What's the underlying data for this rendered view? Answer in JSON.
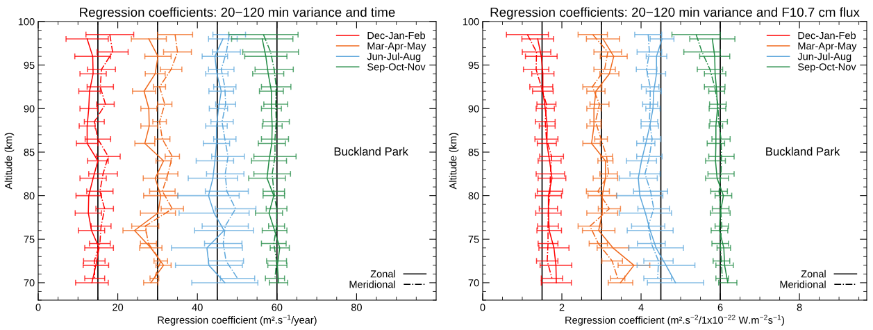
{
  "chart_data": [
    {
      "type": "line",
      "title": "Regression coefficients: 20−120 min variance and time",
      "xlabel": "Regression coefficient (m².s$^{−1}$/year)",
      "ylabel": "Altitude (km)",
      "xlim": [
        0,
        100
      ],
      "ylim": [
        68,
        100
      ],
      "xticks": [
        0,
        {
          "value": 5,
          "label": null
        },
        {
          "value": 10,
          "label": null
        },
        {
          "value": 15,
          "label": null
        },
        20,
        {
          "value": 25,
          "label": null
        },
        {
          "value": 30,
          "label": null
        },
        {
          "value": 35,
          "label": null
        },
        40,
        {
          "value": 45,
          "label": null
        },
        {
          "value": 50,
          "label": null
        },
        {
          "value": 55,
          "label": null
        },
        60,
        {
          "value": 65,
          "label": null
        },
        {
          "value": 70,
          "label": null
        },
        {
          "value": 75,
          "label": null
        },
        80,
        {
          "value": 85,
          "label": null
        },
        {
          "value": 90,
          "label": null
        },
        {
          "value": 95,
          "label": null
        }
      ],
      "yticks": [
        {
          "value": 68,
          "label": null
        },
        {
          "value": 69,
          "label": null
        },
        70,
        {
          "value": 71,
          "label": null
        },
        {
          "value": 72,
          "label": null
        },
        {
          "value": 73,
          "label": null
        },
        {
          "value": 74,
          "label": null
        },
        75,
        {
          "value": 76,
          "label": null
        },
        {
          "value": 77,
          "label": null
        },
        {
          "value": 78,
          "label": null
        },
        {
          "value": 79,
          "label": null
        },
        80,
        {
          "value": 81,
          "label": null
        },
        {
          "value": 82,
          "label": null
        },
        {
          "value": 83,
          "label": null
        },
        {
          "value": 84,
          "label": null
        },
        85,
        {
          "value": 86,
          "label": null
        },
        {
          "value": 87,
          "label": null
        },
        {
          "value": 88,
          "label": null
        },
        {
          "value": 89,
          "label": null
        },
        90,
        {
          "value": 91,
          "label": null
        },
        {
          "value": 92,
          "label": null
        },
        {
          "value": 93,
          "label": null
        },
        {
          "value": 94,
          "label": null
        },
        95,
        {
          "value": 96,
          "label": null
        },
        {
          "value": 97,
          "label": null
        },
        {
          "value": 98,
          "label": null
        },
        {
          "value": 99,
          "label": null
        },
        100
      ],
      "grid": false,
      "legend": "top right",
      "marker": "none",
      "ref_lines": [
        {
          "axis": "x",
          "value": 15,
          "color": "#000000"
        },
        {
          "axis": "x",
          "value": 30,
          "color": "#000000"
        },
        {
          "axis": "x",
          "value": 45,
          "color": "#000000"
        },
        {
          "axis": "x",
          "value": 60,
          "color": "#000000"
        }
      ],
      "annotations": [
        "Buckland Park",
        "Zonal",
        "Meridional"
      ],
      "series": [
        {
          "name": "Dec-Jan-Feb",
          "color": "#ff0000",
          "line_style": "solid",
          "x": [
            12.3,
            13.7,
            13.8,
            12.9,
            12.7,
            12.3,
            12.3,
            15.0,
            13.8,
            12.7,
            12.6,
            13.4,
            15.3,
            14.5,
            13.5
          ],
          "values": [
            98,
            96,
            94,
            92,
            90,
            88,
            86,
            84,
            82,
            80,
            78,
            76,
            74,
            72,
            70
          ],
          "xerrors": [
            5.3,
            4.5,
            3.3,
            2.7,
            2.2,
            2.0,
            2.7,
            2.6,
            3.3,
            3.2,
            3.3,
            3.3,
            3.6,
            3.2,
            4.1
          ]
        },
        {
          "color": "#ff0000",
          "line_style": "dashdot",
          "x": [
            18.0,
            18.7,
            15.9,
            15.6,
            16.9,
            14.1,
            15.0,
            17.6,
            16.3,
            15.5,
            16.7,
            15.8,
            15.5,
            14.1,
            14.2
          ],
          "values": [
            98.5,
            96.5,
            94.5,
            92.5,
            90.5,
            88.5,
            86.5,
            84.5,
            82.5,
            80.5,
            78.5,
            76.5,
            74.5,
            72.5,
            70.5
          ],
          "xerrors": [
            6.0,
            3.9,
            3.5,
            3.3,
            2.2,
            2.5,
            3.2,
            3.0,
            3.6,
            3.3,
            2.2,
            2.5,
            2.6,
            2.7,
            2.5
          ]
        },
        {
          "name": "Mar-Apr-May",
          "color": "#f06a1e",
          "line_style": "solid",
          "x": [
            27.8,
            30.1,
            29.4,
            26.6,
            27.8,
            27.9,
            26.8,
            31.5,
            29.4,
            30.8,
            30.1,
            24.2,
            28.3,
            31.5,
            28.3
          ],
          "values": [
            98,
            96,
            94,
            92,
            90,
            88,
            86,
            84,
            82,
            80,
            78,
            76,
            74,
            72,
            70
          ],
          "xerrors": [
            4.4,
            3.3,
            2.5,
            2.9,
            2.0,
            2.1,
            2.5,
            1.9,
            3.0,
            4.3,
            4.4,
            2.9,
            2.8,
            1.9,
            1.8
          ]
        },
        {
          "color": "#f06a1e",
          "line_style": "dashdot",
          "x": [
            34.4,
            35.0,
            33.4,
            30.5,
            31.8,
            30.5,
            31.2,
            33.7,
            32.6,
            31.2,
            33.7,
            26.9,
            27.7,
            30.8,
            29.2
          ],
          "values": [
            98.5,
            96.5,
            94.5,
            92.5,
            90.5,
            88.5,
            86.5,
            84.5,
            82.5,
            80.5,
            78.5,
            76.5,
            74.5,
            72.5,
            70.5
          ],
          "xerrors": [
            4.4,
            3.5,
            2.7,
            1.5,
            1.8,
            1.7,
            1.9,
            1.8,
            2.5,
            3.2,
            2.8,
            3.4,
            2.0,
            1.7,
            1.1
          ]
        },
        {
          "name": "Jun-Jul-Aug",
          "color": "#5fa8dc",
          "line_style": "solid",
          "x": [
            46.4,
            44.4,
            44.9,
            46.0,
            45.3,
            44.8,
            44.8,
            44.4,
            43.9,
            42.8,
            44.2,
            46.7,
            42.4,
            42.9,
            46.9
          ],
          "values": [
            98,
            96,
            94,
            92,
            90,
            88,
            86,
            84,
            82,
            80,
            78,
            76,
            74,
            72,
            70
          ],
          "xerrors": [
            3.6,
            3.2,
            2.8,
            3.1,
            2.3,
            2.7,
            3.3,
            4.7,
            6.2,
            7.7,
            8.8,
            7.4,
            8.9,
            8.4,
            8.3
          ]
        },
        {
          "color": "#5fa8dc",
          "line_style": "dashdot",
          "x": [
            48.0,
            47.3,
            46.0,
            46.9,
            47.1,
            46.2,
            46.9,
            47.7,
            47.0,
            47.4,
            49.6,
            47.0,
            46.5,
            47.2,
            50.1
          ],
          "values": [
            98.5,
            96.5,
            94.5,
            92.5,
            90.5,
            88.5,
            86.5,
            84.5,
            82.5,
            80.5,
            78.5,
            76.5,
            74.5,
            72.5,
            70.5
          ],
          "xerrors": [
            4.1,
            3.5,
            3.2,
            2.8,
            2.5,
            2.8,
            2.8,
            4.1,
            4.7,
            5.4,
            5.1,
            5.8,
            4.7,
            4.4,
            4.3
          ]
        },
        {
          "name": "Sep-Oct-Nov",
          "color": "#238b45",
          "line_style": "solid",
          "x": [
            56.3,
            57.2,
            57.8,
            58.6,
            58.6,
            58.8,
            58.7,
            58.0,
            57.5,
            59.2,
            58.0,
            59.4,
            60.7,
            60.1,
            60.4
          ],
          "values": [
            98,
            96,
            94,
            92,
            90,
            88,
            86,
            84,
            82,
            80,
            78,
            76,
            74,
            72,
            70
          ],
          "xerrors": [
            7.7,
            5.3,
            3.9,
            3.0,
            2.5,
            2.5,
            3.4,
            4.4,
            4.6,
            2.7,
            3.4,
            3.1,
            2.4,
            2.4,
            2.3
          ]
        },
        {
          "color": "#238b45",
          "line_style": "dashdot",
          "x": [
            56.6,
            58.4,
            59.3,
            59.8,
            59.7,
            59.8,
            59.5,
            59.5,
            58.8,
            59.2,
            59.9,
            59.9,
            59.2,
            59.9,
            59.5
          ],
          "values": [
            98.5,
            96.5,
            94.5,
            92.5,
            90.5,
            88.5,
            86.5,
            84.5,
            82.5,
            80.5,
            78.5,
            76.5,
            74.5,
            72.5,
            70.5
          ],
          "xerrors": [
            8.7,
            7.0,
            4.8,
            3.7,
            3.0,
            3.3,
            3.4,
            5.3,
            4.6,
            2.7,
            2.6,
            2.0,
            3.1,
            2.5,
            2.4
          ]
        }
      ]
    },
    {
      "type": "line",
      "title": "Regression coefficients: 20−120 min variance and F10.7 cm flux",
      "xlabel": "Regression coefficient (m².s$^{−2}$/1x10$^{−22}$ W.m$^{−2}$s$^{−1}$)",
      "ylabel": "Altitude (km)",
      "xlim": [
        0,
        9.7
      ],
      "ylim": [
        68,
        100
      ],
      "xticks": [
        0,
        {
          "value": 0.5,
          "label": null
        },
        {
          "value": 1,
          "label": null
        },
        {
          "value": 1.5,
          "label": null
        },
        2,
        {
          "value": 2.5,
          "label": null
        },
        {
          "value": 3,
          "label": null
        },
        {
          "value": 3.5,
          "label": null
        },
        4,
        {
          "value": 4.5,
          "label": null
        },
        {
          "value": 5,
          "label": null
        },
        {
          "value": 5.5,
          "label": null
        },
        6,
        {
          "value": 6.5,
          "label": null
        },
        {
          "value": 7,
          "label": null
        },
        {
          "value": 7.5,
          "label": null
        },
        8,
        {
          "value": 8.5,
          "label": null
        },
        {
          "value": 9,
          "label": null
        },
        {
          "value": 9.5,
          "label": null
        }
      ],
      "yticks": [
        {
          "value": 68,
          "label": null
        },
        {
          "value": 69,
          "label": null
        },
        70,
        {
          "value": 71,
          "label": null
        },
        {
          "value": 72,
          "label": null
        },
        {
          "value": 73,
          "label": null
        },
        {
          "value": 74,
          "label": null
        },
        75,
        {
          "value": 76,
          "label": null
        },
        {
          "value": 77,
          "label": null
        },
        {
          "value": 78,
          "label": null
        },
        {
          "value": 79,
          "label": null
        },
        80,
        {
          "value": 81,
          "label": null
        },
        {
          "value": 82,
          "label": null
        },
        {
          "value": 83,
          "label": null
        },
        {
          "value": 84,
          "label": null
        },
        85,
        {
          "value": 86,
          "label": null
        },
        {
          "value": 87,
          "label": null
        },
        {
          "value": 88,
          "label": null
        },
        {
          "value": 89,
          "label": null
        },
        90,
        {
          "value": 91,
          "label": null
        },
        {
          "value": 92,
          "label": null
        },
        {
          "value": 93,
          "label": null
        },
        {
          "value": 94,
          "label": null
        },
        95,
        {
          "value": 96,
          "label": null
        },
        {
          "value": 97,
          "label": null
        },
        {
          "value": 98,
          "label": null
        },
        {
          "value": 99,
          "label": null
        },
        100
      ],
      "grid": false,
      "legend": "top right",
      "marker": "none",
      "ref_lines": [
        {
          "axis": "x",
          "value": 1.5,
          "color": "#000000"
        },
        {
          "axis": "x",
          "value": 3,
          "color": "#000000"
        },
        {
          "axis": "x",
          "value": 4.5,
          "color": "#000000"
        },
        {
          "axis": "x",
          "value": 6,
          "color": "#000000"
        }
      ],
      "annotations": [
        "Buckland Park",
        "Zonal",
        "Meridional"
      ],
      "series": [
        {
          "name": "Dec-Jan-Feb",
          "color": "#ff0000",
          "line_style": "solid",
          "x": [
            1.39,
            1.48,
            1.52,
            1.52,
            1.58,
            1.63,
            1.62,
            1.69,
            1.75,
            1.66,
            1.66,
            1.68,
            1.8,
            1.85,
            1.86
          ],
          "values": [
            98,
            96,
            94,
            92,
            90,
            88,
            86,
            84,
            82,
            80,
            78,
            76,
            74,
            72,
            70
          ],
          "xerrors": [
            0.4,
            0.4,
            0.28,
            0.26,
            0.23,
            0.2,
            0.24,
            0.29,
            0.35,
            0.33,
            0.32,
            0.31,
            0.38,
            0.4,
            0.38
          ]
        },
        {
          "color": "#ff0000",
          "line_style": "dashdot",
          "x": [
            1.13,
            1.36,
            1.35,
            1.48,
            1.61,
            1.58,
            1.61,
            1.74,
            1.71,
            1.7,
            1.66,
            1.65,
            1.65,
            1.63,
            1.75
          ],
          "values": [
            98.5,
            96.5,
            94.5,
            92.5,
            90.5,
            88.5,
            86.5,
            84.5,
            82.5,
            80.5,
            78.5,
            76.5,
            74.5,
            72.5,
            70.5
          ],
          "xerrors": [
            0.53,
            0.36,
            0.32,
            0.29,
            0.24,
            0.25,
            0.29,
            0.3,
            0.36,
            0.32,
            0.23,
            0.26,
            0.25,
            0.27,
            0.27
          ]
        },
        {
          "name": "Mar-Apr-May",
          "color": "#f06a1e",
          "line_style": "solid",
          "x": [
            3.04,
            3.31,
            3.2,
            2.86,
            2.81,
            2.81,
            2.75,
            3.1,
            3.1,
            3.02,
            3.02,
            2.93,
            3.29,
            3.82,
            3.48
          ],
          "values": [
            98,
            96,
            94,
            92,
            90,
            88,
            86,
            84,
            82,
            80,
            78,
            76,
            74,
            72,
            70
          ],
          "xerrors": [
            0.42,
            0.34,
            0.24,
            0.23,
            0.18,
            0.18,
            0.22,
            0.19,
            0.31,
            0.36,
            0.39,
            0.41,
            0.4,
            0.4,
            0.31
          ]
        },
        {
          "color": "#f06a1e",
          "line_style": "dashdot",
          "x": [
            2.78,
            3.16,
            3.08,
            2.77,
            2.95,
            2.85,
            2.99,
            3.13,
            3.18,
            2.91,
            3.2,
            2.71,
            2.92,
            3.27,
            3.41
          ],
          "values": [
            98.5,
            96.5,
            94.5,
            92.5,
            90.5,
            88.5,
            86.5,
            84.5,
            82.5,
            80.5,
            78.5,
            76.5,
            74.5,
            72.5,
            70.5
          ],
          "xerrors": [
            0.37,
            0.35,
            0.27,
            0.24,
            0.24,
            0.14,
            0.16,
            0.15,
            0.22,
            0.29,
            0.28,
            0.3,
            0.23,
            0.26,
            0.18
          ]
        },
        {
          "name": "Jun-Jul-Aug",
          "color": "#5fa8dc",
          "line_style": "solid",
          "x": [
            4.53,
            4.39,
            4.39,
            4.32,
            4.3,
            4.22,
            4.12,
            4.01,
            3.93,
            3.97,
            4.11,
            4.23,
            4.38,
            4.63,
            4.87
          ],
          "values": [
            98,
            96,
            94,
            92,
            90,
            88,
            86,
            84,
            82,
            80,
            78,
            76,
            74,
            72,
            70
          ],
          "xerrors": [
            0.3,
            0.26,
            0.23,
            0.19,
            0.18,
            0.22,
            0.23,
            0.38,
            0.48,
            0.58,
            0.66,
            0.58,
            0.69,
            0.73,
            0.71
          ]
        },
        {
          "color": "#5fa8dc",
          "line_style": "dashdot",
          "x": [
            4.18,
            4.21,
            4.14,
            4.23,
            4.23,
            4.21,
            4.28,
            4.21,
            4.1,
            4.24,
            4.32,
            4.18,
            4.26,
            4.44,
            4.42
          ],
          "values": [
            98.5,
            96.5,
            94.5,
            92.5,
            90.5,
            88.5,
            86.5,
            84.5,
            82.5,
            80.5,
            78.5,
            76.5,
            74.5,
            72.5,
            70.5
          ],
          "xerrors": [
            0.34,
            0.31,
            0.26,
            0.22,
            0.19,
            0.21,
            0.22,
            0.32,
            0.38,
            0.43,
            0.4,
            0.42,
            0.35,
            0.37,
            0.35
          ]
        },
        {
          "name": "Sep-Oct-Nov",
          "color": "#238b45",
          "line_style": "solid",
          "x": [
            5.8,
            5.86,
            5.87,
            5.91,
            5.93,
            5.89,
            5.89,
            5.88,
            5.92,
            6.08,
            6.0,
            5.98,
            6.09,
            6.11,
            6.19
          ],
          "values": [
            98,
            96,
            94,
            92,
            90,
            88,
            86,
            84,
            82,
            80,
            78,
            76,
            74,
            72,
            70
          ],
          "xerrors": [
            0.57,
            0.38,
            0.27,
            0.2,
            0.21,
            0.17,
            0.22,
            0.25,
            0.29,
            0.21,
            0.25,
            0.21,
            0.17,
            0.22,
            0.23
          ]
        },
        {
          "color": "#238b45",
          "line_style": "dashdot",
          "x": [
            5.39,
            5.54,
            5.74,
            5.86,
            5.94,
            5.96,
            6.02,
            6.03,
            6.02,
            5.97,
            6.01,
            6.04,
            6.0,
            6.03,
            6.05
          ],
          "values": [
            98.5,
            96.5,
            94.5,
            92.5,
            90.5,
            88.5,
            86.5,
            84.5,
            82.5,
            80.5,
            78.5,
            76.5,
            74.5,
            72.5,
            70.5
          ],
          "xerrors": [
            0.61,
            0.46,
            0.32,
            0.26,
            0.21,
            0.22,
            0.23,
            0.32,
            0.33,
            0.21,
            0.21,
            0.17,
            0.21,
            0.21,
            0.16
          ]
        }
      ]
    }
  ]
}
